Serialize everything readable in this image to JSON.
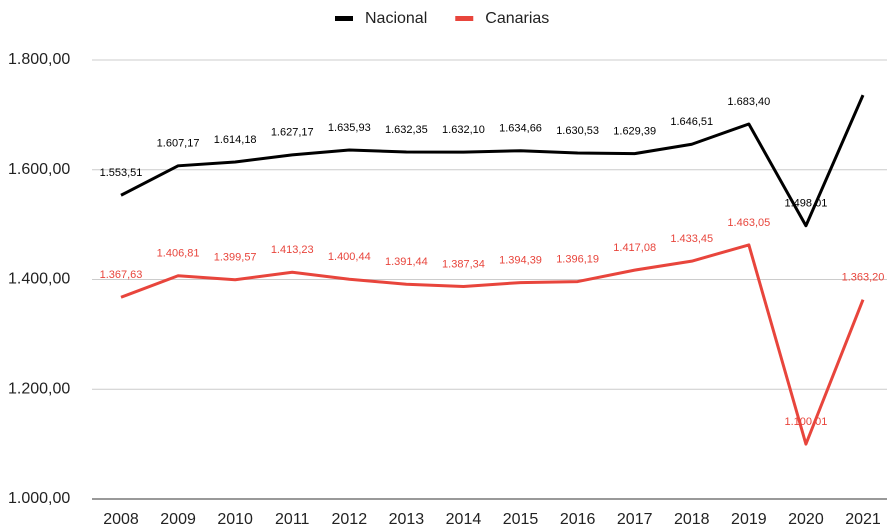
{
  "chart_data": {
    "type": "line",
    "categories": [
      "2008",
      "2009",
      "2010",
      "2011",
      "2012",
      "2013",
      "2014",
      "2015",
      "2016",
      "2017",
      "2018",
      "2019",
      "2020",
      "2021"
    ],
    "series": [
      {
        "name": "Nacional",
        "color": "#000000",
        "values": [
          1553.51,
          1607.17,
          1614.18,
          1627.17,
          1635.93,
          1632.35,
          1632.1,
          1634.66,
          1630.53,
          1629.39,
          1646.51,
          1683.4,
          1498.01,
          1736
        ],
        "value_labels": [
          "1.553,51",
          "1.607,17",
          "1.614,18",
          "1.627,17",
          "1.635,93",
          "1.632,35",
          "1.632,10",
          "1.634,66",
          "1.630,53",
          "1.629,39",
          "1.646,51",
          "1.683,40",
          "1.498,01",
          null
        ]
      },
      {
        "name": "Canarias",
        "color": "#e8453c",
        "values": [
          1367.63,
          1406.81,
          1399.57,
          1413.23,
          1400.44,
          1391.44,
          1387.34,
          1394.39,
          1396.19,
          1417.08,
          1433.45,
          1463.05,
          1100.01,
          1363.2
        ],
        "value_labels": [
          "1.367,63",
          "1.406,81",
          "1.399,57",
          "1.413,23",
          "1.400,44",
          "1.391,44",
          "1.387,34",
          "1.394,39",
          "1.396,19",
          "1.417,08",
          "1.433,45",
          "1.463,05",
          "1.100,01",
          "1.363,20"
        ]
      }
    ],
    "ylim": [
      1000,
      1800
    ],
    "yticks": [
      {
        "value": 1000,
        "label": "1.000,00"
      },
      {
        "value": 1200,
        "label": "1.200,00"
      },
      {
        "value": 1400,
        "label": "1.400,00"
      },
      {
        "value": 1600,
        "label": "1.600,00"
      },
      {
        "value": 1800,
        "label": "1.800,00"
      }
    ],
    "grid": true,
    "legend": "top"
  }
}
